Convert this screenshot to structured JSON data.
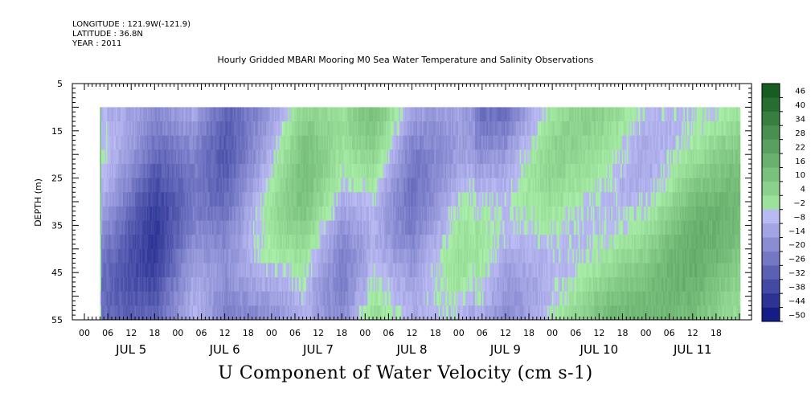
{
  "header": {
    "longitude": "LONGITUDE : 121.9W(-121.9)",
    "latitude": "LATITUDE : 36.8N",
    "year": "YEAR : 2011"
  },
  "chart_data": {
    "type": "heatmap",
    "title": "Hourly Gridded MBARI Mooring M0 Sea Water Temperature and Salinity Observations",
    "footer_label": "U Component of Water Velocity (cm s-1)",
    "ylabel": "DEPTH (m)",
    "ylim": [
      55,
      5
    ],
    "yticks": [
      5,
      15,
      25,
      35,
      45,
      55
    ],
    "data_depth_range": [
      10,
      55
    ],
    "xlim_hours": [
      0,
      168
    ],
    "data_start_hour": 4,
    "hour_ticks": [
      "00",
      "06",
      "12",
      "18"
    ],
    "day_labels": [
      "JUL 5",
      "JUL 6",
      "JUL 7",
      "JUL 8",
      "JUL 9",
      "JUL 10",
      "JUL 11"
    ],
    "colorbar": {
      "levels": [
        46,
        40,
        34,
        28,
        22,
        16,
        10,
        4,
        -2,
        -8,
        -14,
        -20,
        -26,
        -32,
        -38,
        -44,
        -50
      ],
      "range": [
        -50,
        52
      ]
    },
    "field_pattern": [
      {
        "hour": 4,
        "value": -12
      },
      {
        "hour": 18,
        "value": -28
      },
      {
        "hour": 28,
        "value": -12
      },
      {
        "hour": 36,
        "value": -22
      },
      {
        "hour": 48,
        "value": -6
      },
      {
        "hour": 56,
        "value": 6
      },
      {
        "hour": 66,
        "value": -8
      },
      {
        "hour": 74,
        "value": 4
      },
      {
        "hour": 84,
        "value": -14
      },
      {
        "hour": 96,
        "value": -4
      },
      {
        "hour": 108,
        "value": -12
      },
      {
        "hour": 120,
        "value": 2
      },
      {
        "hour": 132,
        "value": 6
      },
      {
        "hour": 144,
        "value": 4
      },
      {
        "hour": 156,
        "value": 12
      },
      {
        "hour": 168,
        "value": 10
      }
    ]
  }
}
